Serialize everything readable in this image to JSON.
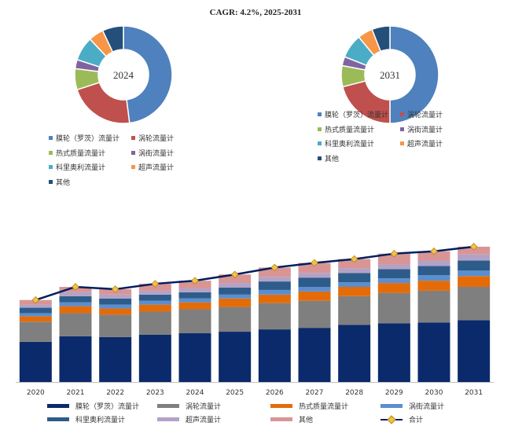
{
  "chart_data": [
    {
      "type": "pie",
      "variant": "donut",
      "label": "2024",
      "categories": [
        "膜轮（罗茨）流量计",
        "涡轮流量计",
        "热式质量流量计",
        "涡街流量计",
        "科里奥利流量计",
        "超声流量计",
        "其他"
      ],
      "values": [
        48,
        22,
        7,
        3,
        8,
        5,
        7
      ],
      "colors": [
        "#4e81bd",
        "#c0504d",
        "#9bbb59",
        "#8064a2",
        "#4bacc6",
        "#f79646",
        "#244f7a"
      ]
    },
    {
      "type": "pie",
      "variant": "donut",
      "label": "2031",
      "categories": [
        "膜轮（罗茨）流量计",
        "涡轮流量计",
        "热式质量流量计",
        "涡街流量计",
        "科里奥利流量计",
        "超声流量计",
        "其他"
      ],
      "values": [
        50,
        21,
        7,
        3,
        8,
        5,
        6
      ],
      "colors": [
        "#4e81bd",
        "#c0504d",
        "#9bbb59",
        "#8064a2",
        "#4bacc6",
        "#f79646",
        "#244f7a"
      ]
    },
    {
      "type": "bar",
      "stacked": true,
      "title": "CAGR: 4.2%, 2025-2031",
      "categories": [
        "2020",
        "2021",
        "2022",
        "2023",
        "2024",
        "2025",
        "2026",
        "2027",
        "2028",
        "2029",
        "2030",
        "2031"
      ],
      "series": [
        {
          "name": "膜轮（罗茨）流量计",
          "color": "#0a2a6b",
          "values": [
            52,
            59,
            58,
            61,
            63,
            65,
            68,
            70,
            74,
            76,
            77,
            80
          ]
        },
        {
          "name": "涡轮流量计",
          "color": "#7f7f7f",
          "values": [
            26,
            30,
            29,
            30,
            31,
            32,
            34,
            35,
            37,
            39,
            41,
            43
          ]
        },
        {
          "name": "热式质量流量计",
          "color": "#e36c09",
          "values": [
            7,
            9,
            8,
            9,
            9,
            11,
            11,
            12,
            12,
            13,
            13,
            14
          ]
        },
        {
          "name": "涡街流量计",
          "color": "#5a8ed0",
          "values": [
            4,
            5,
            5,
            5,
            5,
            5,
            6,
            6,
            6,
            6,
            7,
            7
          ]
        },
        {
          "name": "科里奥利流量计",
          "color": "#2e5c8a",
          "values": [
            7,
            8,
            8,
            8,
            8,
            9,
            11,
            12,
            12,
            12,
            12,
            13
          ]
        },
        {
          "name": "超声流量计",
          "color": "#b3a2c7",
          "values": [
            4,
            5,
            5,
            5,
            5,
            6,
            6,
            6,
            6,
            6,
            7,
            8
          ]
        },
        {
          "name": "其他",
          "color": "#d99594",
          "values": [
            6,
            7,
            7,
            9,
            10,
            11,
            12,
            13,
            12,
            14,
            12,
            10
          ]
        }
      ],
      "total": {
        "name": "合计",
        "color": "#001e5e",
        "marker_color": "#f2c14e",
        "values": [
          106,
          123,
          120,
          127,
          131,
          139,
          148,
          154,
          159,
          166,
          169,
          175
        ]
      },
      "ylim": [
        0,
        185
      ]
    }
  ]
}
